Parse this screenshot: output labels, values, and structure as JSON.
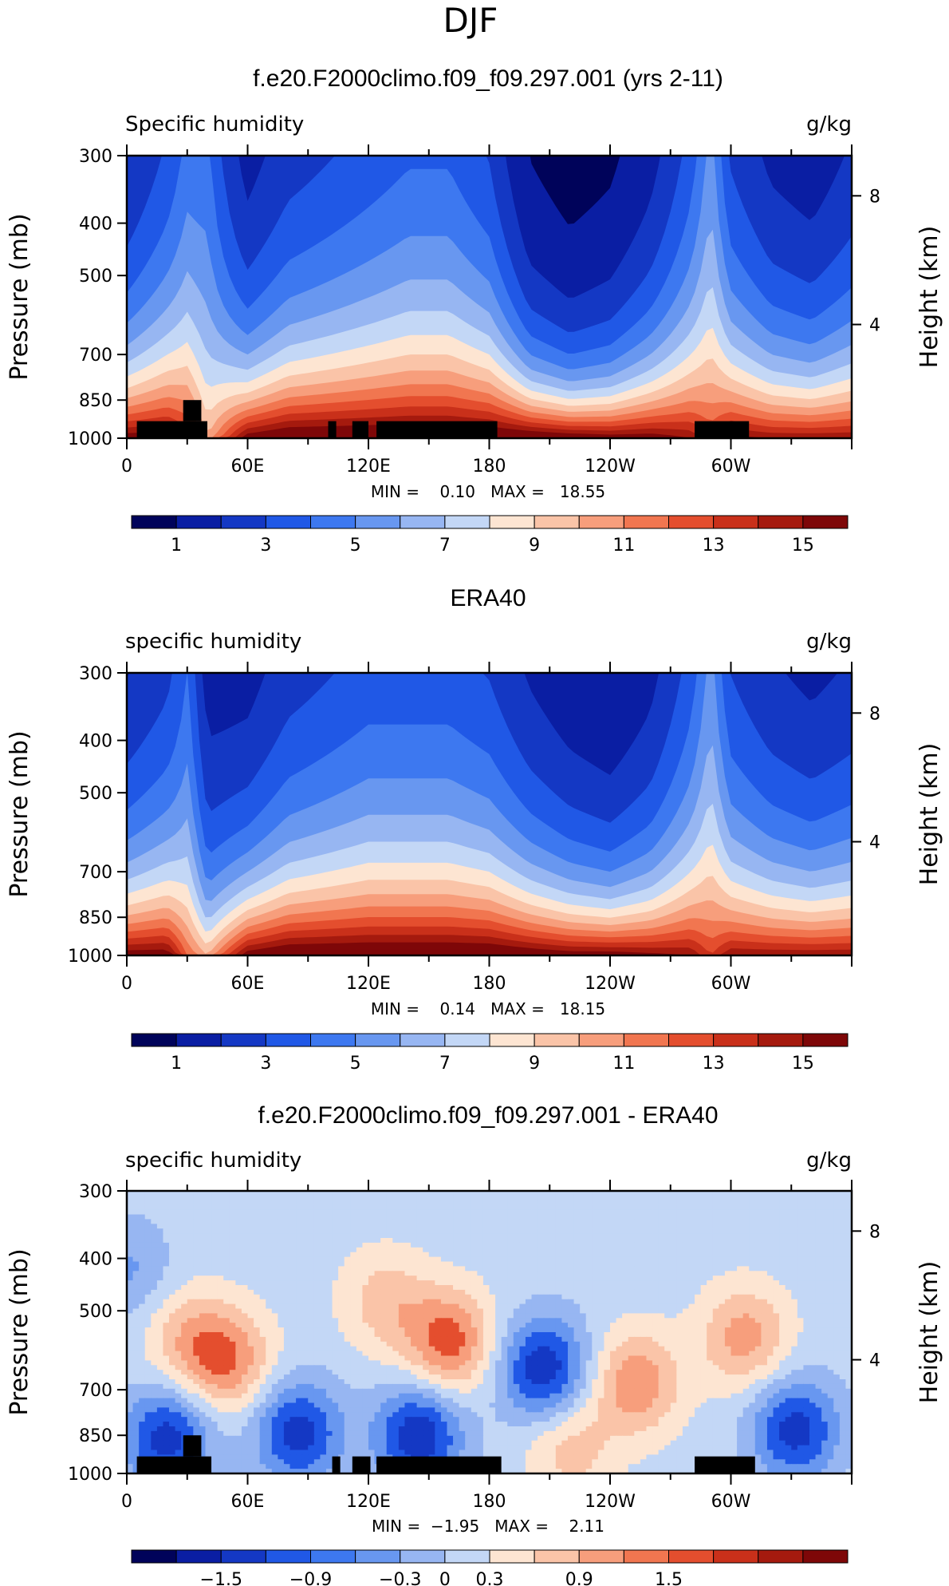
{
  "page": {
    "season": "DJF"
  },
  "panels": [
    {
      "id": "model",
      "title": "f.e20.F2000climo.f09_f09.297.001 (yrs 2-11)",
      "left_label": "Specific humidity",
      "units": "g/kg",
      "ylabel": "Pressure (mb)",
      "ylabel_right": "Height (km)",
      "stats_text": "MIN =    0.10   MAX =   18.55",
      "masked_topography": true,
      "colorbar_labels": [
        "1",
        "3",
        "5",
        "7",
        "9",
        "11",
        "13",
        "15"
      ]
    },
    {
      "id": "obs",
      "title": "ERA40",
      "left_label": "specific humidity",
      "units": "g/kg",
      "ylabel": "Pressure (mb)",
      "ylabel_right": "Height (km)",
      "stats_text": "MIN =    0.14   MAX =   18.15",
      "masked_topography": false,
      "colorbar_labels": [
        "1",
        "3",
        "5",
        "7",
        "9",
        "11",
        "13",
        "15"
      ]
    },
    {
      "id": "diff",
      "title": "f.e20.F2000climo.f09_f09.297.001 - ERA40",
      "left_label": "specific humidity",
      "units": "g/kg",
      "ylabel": "Pressure (mb)",
      "ylabel_right": "Height (km)",
      "stats_text": "MIN =  −1.95   MAX =    2.11",
      "masked_topography": true,
      "colorbar_labels": [
        "−1.5",
        "−0.9",
        "−0.3",
        "0",
        "0.3",
        "0.9",
        "1.5"
      ]
    }
  ],
  "chart_data": [
    {
      "type": "heatmap",
      "title": "f.e20.F2000climo.f09_f09.297.001 (yrs 2-11)",
      "variable": "Specific humidity",
      "units": "g/kg",
      "x_ticks": [
        "0",
        "60E",
        "120E",
        "180",
        "120W",
        "60W"
      ],
      "x_range_deg": [
        0,
        360
      ],
      "y_ticks": [
        "300",
        "400",
        "500",
        "700",
        "850",
        "1000"
      ],
      "y_range_mb": [
        300,
        1000
      ],
      "y_right_ticks": [
        "8",
        "4"
      ],
      "min": 0.1,
      "max": 18.55,
      "contour_levels": [
        1,
        2,
        3,
        4,
        5,
        6,
        7,
        8,
        9,
        10,
        11,
        12,
        13,
        14,
        15,
        16
      ],
      "profile_lon_deg": [
        0,
        20,
        30,
        40,
        60,
        80,
        100,
        120,
        140,
        160,
        180,
        200,
        220,
        240,
        260,
        280,
        290,
        300,
        320,
        340,
        360
      ],
      "surface_q_gkg": [
        16,
        16,
        14,
        10,
        16,
        17,
        17,
        17,
        17,
        17,
        17,
        17,
        16.5,
        16,
        16,
        15,
        13,
        15.5,
        15,
        15,
        15
      ],
      "q_at_700mb_gkg": [
        6.5,
        8,
        8.5,
        7,
        6,
        7.5,
        8,
        8.5,
        9,
        9,
        8,
        5,
        4,
        4.5,
        6,
        8,
        9,
        7.5,
        6,
        5.5,
        6.5
      ],
      "land_mask_lon_deg": [
        [
          5,
          40
        ],
        [
          100,
          104
        ],
        [
          112,
          120
        ],
        [
          124,
          184
        ],
        [
          282,
          309
        ]
      ]
    },
    {
      "type": "heatmap",
      "title": "ERA40",
      "variable": "specific humidity",
      "units": "g/kg",
      "x_ticks": [
        "0",
        "60E",
        "120E",
        "180",
        "120W",
        "60W"
      ],
      "x_range_deg": [
        0,
        360
      ],
      "y_ticks": [
        "300",
        "400",
        "500",
        "700",
        "850",
        "1000"
      ],
      "y_range_mb": [
        300,
        1000
      ],
      "y_right_ticks": [
        "8",
        "4"
      ],
      "min": 0.14,
      "max": 18.15,
      "contour_levels": [
        1,
        2,
        3,
        4,
        5,
        6,
        7,
        8,
        9,
        10,
        11,
        12,
        13,
        14,
        15,
        16
      ],
      "profile_lon_deg": [
        0,
        20,
        30,
        40,
        60,
        80,
        100,
        120,
        140,
        160,
        180,
        200,
        220,
        240,
        260,
        280,
        290,
        300,
        320,
        340,
        360
      ],
      "surface_q_gkg": [
        16,
        16,
        12,
        10,
        16,
        17,
        17,
        17,
        17,
        17,
        17,
        16.5,
        16,
        16,
        15.5,
        15,
        13,
        15,
        15,
        15,
        15
      ],
      "q_at_700mb_gkg": [
        6.5,
        7.5,
        7.5,
        4.5,
        6,
        7.5,
        8,
        8.5,
        8.5,
        8.5,
        8,
        6.5,
        5.5,
        5,
        6,
        8,
        9,
        7.5,
        6.5,
        6,
        6.5
      ]
    },
    {
      "type": "heatmap",
      "title": "f.e20.F2000climo.f09_f09.297.001 - ERA40",
      "variable": "specific humidity difference",
      "units": "g/kg",
      "x_ticks": [
        "0",
        "60E",
        "120E",
        "180",
        "120W",
        "60W"
      ],
      "x_range_deg": [
        0,
        360
      ],
      "y_ticks": [
        "300",
        "400",
        "500",
        "700",
        "850",
        "1000"
      ],
      "y_range_mb": [
        300,
        1000
      ],
      "y_right_ticks": [
        "8",
        "4"
      ],
      "min": -1.95,
      "max": 2.11,
      "contour_levels": [
        -1.8,
        -1.5,
        -1.2,
        -0.9,
        -0.6,
        -0.3,
        0,
        0.3,
        0.6,
        0.9,
        1.2,
        1.5,
        1.8
      ],
      "features": [
        {
          "lon_deg": 50,
          "p_mb": 620,
          "value": 1.0
        },
        {
          "lon_deg": 30,
          "p_mb": 560,
          "value": 0.6
        },
        {
          "lon_deg": 160,
          "p_mb": 570,
          "value": 1.2
        },
        {
          "lon_deg": 128,
          "p_mb": 480,
          "value": 0.6
        },
        {
          "lon_deg": 207,
          "p_mb": 640,
          "value": -1.3
        },
        {
          "lon_deg": 253,
          "p_mb": 680,
          "value": 1.0
        },
        {
          "lon_deg": 307,
          "p_mb": 560,
          "value": 0.9
        },
        {
          "lon_deg": 85,
          "p_mb": 840,
          "value": -1.2
        },
        {
          "lon_deg": 145,
          "p_mb": 850,
          "value": -1.3
        },
        {
          "lon_deg": 20,
          "p_mb": 860,
          "value": -1.2
        },
        {
          "lon_deg": 332,
          "p_mb": 830,
          "value": -1.2
        },
        {
          "lon_deg": 220,
          "p_mb": 900,
          "value": 0.6
        },
        {
          "lon_deg": 0,
          "p_mb": 420,
          "value": -0.5
        }
      ],
      "land_mask_lon_deg": [
        [
          5,
          42
        ],
        [
          102,
          106
        ],
        [
          112,
          121
        ],
        [
          124,
          186
        ],
        [
          282,
          312
        ]
      ]
    }
  ]
}
